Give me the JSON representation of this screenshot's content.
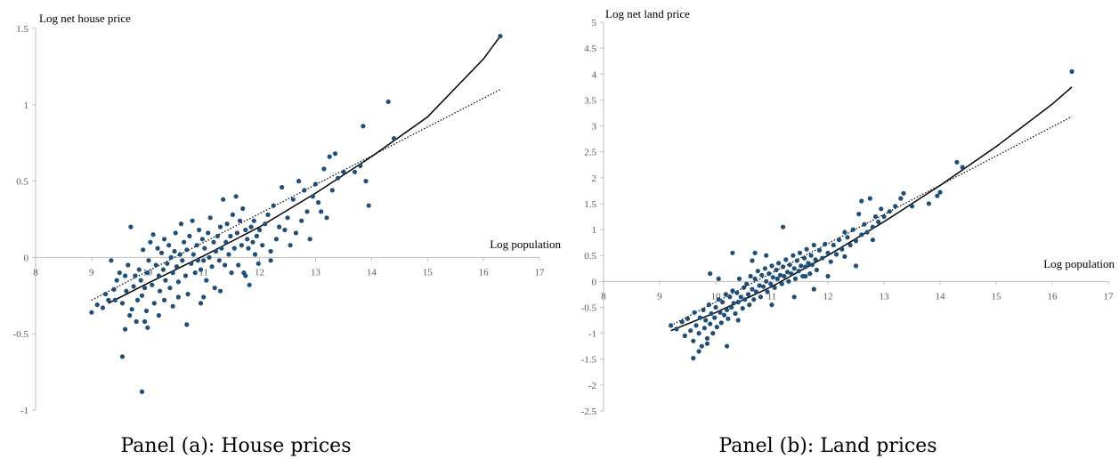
{
  "colors": {
    "point": "#1f4e79",
    "axis": "#bfbfbf",
    "fit_solid": "#000000",
    "fit_dotted": "#000000"
  },
  "chart_data": [
    {
      "type": "scatter",
      "panel": "a",
      "caption": "Panel (a): House prices",
      "ylabel": "Log net house price",
      "xlabel": "Log population",
      "xlim": [
        8,
        17
      ],
      "ylim": [
        -1,
        1.5
      ],
      "x_ticks": [
        "8",
        "9",
        "10",
        "11",
        "12",
        "13",
        "14",
        "15",
        "16",
        "17"
      ],
      "y_ticks": [
        "-1",
        "-0.5",
        "0",
        "0.5",
        "1",
        "1.5"
      ],
      "points": [
        [
          9.0,
          -0.36
        ],
        [
          9.1,
          -0.31
        ],
        [
          9.2,
          -0.33
        ],
        [
          9.25,
          -0.24
        ],
        [
          9.3,
          -0.28
        ],
        [
          9.35,
          -0.02
        ],
        [
          9.4,
          -0.21
        ],
        [
          9.45,
          -0.15
        ],
        [
          9.5,
          -0.1
        ],
        [
          9.55,
          -0.3
        ],
        [
          9.6,
          -0.12
        ],
        [
          9.62,
          -0.22
        ],
        [
          9.65,
          -0.05
        ],
        [
          9.7,
          0.2
        ],
        [
          9.72,
          -0.34
        ],
        [
          9.75,
          -0.19
        ],
        [
          9.78,
          -0.12
        ],
        [
          9.8,
          -0.42
        ],
        [
          9.82,
          -0.28
        ],
        [
          9.85,
          -0.08
        ],
        [
          9.88,
          -0.15
        ],
        [
          9.9,
          -0.25
        ],
        [
          9.92,
          0.05
        ],
        [
          9.95,
          -0.2
        ],
        [
          9.98,
          -0.35
        ],
        [
          10.0,
          -0.1
        ],
        [
          10.02,
          -0.02
        ],
        [
          10.05,
          0.1
        ],
        [
          10.08,
          -0.18
        ],
        [
          10.1,
          0.15
        ],
        [
          10.12,
          -0.3
        ],
        [
          10.15,
          -0.05
        ],
        [
          10.18,
          0.06
        ],
        [
          10.2,
          -0.12
        ],
        [
          10.22,
          -0.22
        ],
        [
          10.25,
          0.03
        ],
        [
          10.28,
          -0.08
        ],
        [
          10.3,
          0.12
        ],
        [
          10.32,
          -0.15
        ],
        [
          10.35,
          -0.04
        ],
        [
          10.38,
          0.08
        ],
        [
          10.4,
          -0.2
        ],
        [
          10.42,
          0.0
        ],
        [
          10.45,
          -0.1
        ],
        [
          10.48,
          0.04
        ],
        [
          10.5,
          0.16
        ],
        [
          10.52,
          -0.06
        ],
        [
          10.55,
          -0.16
        ],
        [
          10.58,
          0.02
        ],
        [
          10.6,
          0.22
        ],
        [
          10.62,
          -0.02
        ],
        [
          10.65,
          0.1
        ],
        [
          10.68,
          -0.12
        ],
        [
          10.7,
          0.05
        ],
        [
          10.72,
          -0.24
        ],
        [
          10.75,
          0.14
        ],
        [
          10.78,
          -0.04
        ],
        [
          10.8,
          0.24
        ],
        [
          10.82,
          0.02
        ],
        [
          10.85,
          -0.1
        ],
        [
          10.88,
          0.08
        ],
        [
          10.9,
          -0.02
        ],
        [
          10.92,
          0.18
        ],
        [
          10.95,
          -0.08
        ],
        [
          10.98,
          0.12
        ],
        [
          11.0,
          -0.02
        ],
        [
          11.02,
          0.06
        ],
        [
          11.05,
          -0.15
        ],
        [
          11.08,
          0.16
        ],
        [
          11.1,
          0.0
        ],
        [
          11.12,
          0.26
        ],
        [
          11.15,
          -0.06
        ],
        [
          11.18,
          0.1
        ],
        [
          11.2,
          -0.2
        ],
        [
          11.22,
          0.04
        ],
        [
          11.25,
          0.14
        ],
        [
          11.28,
          -0.02
        ],
        [
          11.3,
          0.2
        ],
        [
          11.32,
          0.06
        ],
        [
          11.35,
          0.38
        ],
        [
          11.38,
          -0.05
        ],
        [
          11.4,
          0.1
        ],
        [
          11.42,
          0.22
        ],
        [
          11.45,
          0.02
        ],
        [
          11.48,
          0.14
        ],
        [
          11.5,
          -0.1
        ],
        [
          11.52,
          0.28
        ],
        [
          11.55,
          0.06
        ],
        [
          11.58,
          0.4
        ],
        [
          11.6,
          0.16
        ],
        [
          11.62,
          -0.05
        ],
        [
          11.65,
          0.24
        ],
        [
          11.68,
          0.08
        ],
        [
          11.7,
          0.32
        ],
        [
          11.72,
          -0.1
        ],
        [
          11.75,
          0.18
        ],
        [
          11.78,
          0.12
        ],
        [
          11.8,
          0.06
        ],
        [
          11.82,
          -0.18
        ],
        [
          11.85,
          0.2
        ],
        [
          11.88,
          0.1
        ],
        [
          11.9,
          0.24
        ],
        [
          11.92,
          0.02
        ],
        [
          11.95,
          0.14
        ],
        [
          11.98,
          -0.04
        ],
        [
          12.0,
          0.18
        ],
        [
          12.05,
          0.08
        ],
        [
          12.1,
          0.22
        ],
        [
          12.15,
          0.28
        ],
        [
          12.2,
          0.04
        ],
        [
          12.25,
          0.34
        ],
        [
          12.3,
          0.12
        ],
        [
          12.35,
          0.2
        ],
        [
          12.4,
          0.46
        ],
        [
          12.45,
          0.18
        ],
        [
          12.5,
          0.26
        ],
        [
          12.55,
          0.08
        ],
        [
          12.6,
          0.38
        ],
        [
          12.65,
          0.16
        ],
        [
          12.7,
          0.5
        ],
        [
          12.75,
          0.24
        ],
        [
          12.8,
          0.44
        ],
        [
          12.85,
          0.3
        ],
        [
          12.9,
          0.12
        ],
        [
          12.95,
          0.4
        ],
        [
          13.0,
          0.48
        ],
        [
          13.05,
          0.36
        ],
        [
          13.1,
          0.3
        ],
        [
          13.15,
          0.58
        ],
        [
          13.2,
          0.26
        ],
        [
          13.25,
          0.66
        ],
        [
          13.3,
          0.44
        ],
        [
          13.35,
          0.68
        ],
        [
          13.4,
          0.52
        ],
        [
          13.5,
          0.56
        ],
        [
          13.7,
          0.56
        ],
        [
          13.8,
          0.6
        ],
        [
          13.85,
          0.86
        ],
        [
          13.9,
          0.5
        ],
        [
          13.95,
          0.34
        ],
        [
          14.3,
          1.02
        ],
        [
          14.4,
          0.78
        ],
        [
          16.3,
          1.45
        ],
        [
          9.55,
          -0.65
        ],
        [
          9.9,
          -0.88
        ],
        [
          9.6,
          -0.47
        ],
        [
          10.0,
          -0.46
        ],
        [
          10.7,
          -0.44
        ],
        [
          9.42,
          -0.28
        ],
        [
          9.68,
          -0.38
        ],
        [
          10.3,
          -0.28
        ],
        [
          10.55,
          -0.26
        ],
        [
          10.95,
          -0.3
        ],
        [
          11.3,
          -0.22
        ],
        [
          9.95,
          -0.42
        ],
        [
          10.45,
          -0.32
        ],
        [
          11.0,
          -0.26
        ],
        [
          11.75,
          -0.12
        ],
        [
          12.2,
          -0.02
        ],
        [
          10.2,
          -0.38
        ]
      ],
      "fit_quadratic": {
        "x": [
          9.3,
          10,
          11,
          12,
          13,
          14,
          15,
          16,
          16.3
        ],
        "y": [
          -0.3,
          -0.17,
          0.01,
          0.2,
          0.42,
          0.66,
          0.92,
          1.3,
          1.45
        ]
      },
      "fit_linear": {
        "x": [
          9.0,
          16.3
        ],
        "y": [
          -0.28,
          1.1
        ]
      }
    },
    {
      "type": "scatter",
      "panel": "b",
      "caption": "Panel (b): Land prices",
      "ylabel": "Log net land price",
      "xlabel": "Log population",
      "xlim": [
        8,
        17
      ],
      "ylim": [
        -2.5,
        5
      ],
      "x_ticks": [
        "8",
        "9",
        "10",
        "11",
        "12",
        "13",
        "14",
        "15",
        "16",
        "17"
      ],
      "y_ticks": [
        "-2.5",
        "-2",
        "-1.5",
        "-1",
        "-0.5",
        "0",
        "0.5",
        "1",
        "1.5",
        "2",
        "2.5",
        "3",
        "3.5",
        "4",
        "4.5",
        "5"
      ],
      "points": [
        [
          9.2,
          -0.85
        ],
        [
          9.3,
          -0.92
        ],
        [
          9.4,
          -0.78
        ],
        [
          9.45,
          -1.05
        ],
        [
          9.5,
          -0.72
        ],
        [
          9.55,
          -0.95
        ],
        [
          9.6,
          -1.15
        ],
        [
          9.62,
          -0.6
        ],
        [
          9.65,
          -0.85
        ],
        [
          9.7,
          -1.0
        ],
        [
          9.72,
          -0.7
        ],
        [
          9.75,
          -1.25
        ],
        [
          9.78,
          -0.55
        ],
        [
          9.8,
          -0.9
        ],
        [
          9.82,
          -0.75
        ],
        [
          9.85,
          -1.1
        ],
        [
          9.88,
          -0.45
        ],
        [
          9.9,
          -0.82
        ],
        [
          9.92,
          -0.62
        ],
        [
          9.95,
          -1.0
        ],
        [
          9.98,
          -0.7
        ],
        [
          10.0,
          -0.5
        ],
        [
          10.02,
          -0.88
        ],
        [
          10.05,
          -0.35
        ],
        [
          10.08,
          -0.6
        ],
        [
          10.1,
          -0.8
        ],
        [
          10.12,
          -0.4
        ],
        [
          10.15,
          -0.65
        ],
        [
          10.18,
          -0.25
        ],
        [
          10.2,
          -0.55
        ],
        [
          10.22,
          -0.72
        ],
        [
          10.25,
          -0.3
        ],
        [
          10.28,
          -0.5
        ],
        [
          10.3,
          -0.18
        ],
        [
          10.32,
          -0.42
        ],
        [
          10.35,
          -0.62
        ],
        [
          10.38,
          -0.22
        ],
        [
          10.4,
          -0.4
        ],
        [
          10.42,
          0.05
        ],
        [
          10.45,
          -0.3
        ],
        [
          10.48,
          -0.52
        ],
        [
          10.5,
          -0.12
        ],
        [
          10.52,
          -0.35
        ],
        [
          10.55,
          -0.05
        ],
        [
          10.58,
          -0.25
        ],
        [
          10.6,
          -0.45
        ],
        [
          10.62,
          0.1
        ],
        [
          10.65,
          -0.15
        ],
        [
          10.68,
          -0.35
        ],
        [
          10.7,
          0.05
        ],
        [
          10.72,
          -0.2
        ],
        [
          10.75,
          0.2
        ],
        [
          10.78,
          -0.08
        ],
        [
          10.8,
          -0.3
        ],
        [
          10.82,
          0.12
        ],
        [
          10.85,
          -0.1
        ],
        [
          10.88,
          0.25
        ],
        [
          10.9,
          0.0
        ],
        [
          10.92,
          -0.2
        ],
        [
          10.95,
          0.15
        ],
        [
          10.98,
          -0.05
        ],
        [
          11.0,
          0.3
        ],
        [
          11.02,
          0.08
        ],
        [
          11.05,
          -0.12
        ],
        [
          11.08,
          0.22
        ],
        [
          11.1,
          0.05
        ],
        [
          11.12,
          0.35
        ],
        [
          11.15,
          0.12
        ],
        [
          11.18,
          -0.05
        ],
        [
          11.2,
          0.28
        ],
        [
          11.22,
          0.1
        ],
        [
          11.25,
          0.42
        ],
        [
          11.28,
          0.18
        ],
        [
          11.3,
          0.0
        ],
        [
          11.32,
          0.32
        ],
        [
          11.35,
          0.15
        ],
        [
          11.38,
          0.5
        ],
        [
          11.4,
          0.25
        ],
        [
          11.42,
          0.05
        ],
        [
          11.45,
          0.4
        ],
        [
          11.48,
          0.2
        ],
        [
          11.5,
          0.55
        ],
        [
          11.52,
          0.3
        ],
        [
          11.55,
          0.1
        ],
        [
          11.58,
          0.45
        ],
        [
          11.6,
          0.28
        ],
        [
          11.62,
          0.62
        ],
        [
          11.65,
          0.35
        ],
        [
          11.68,
          0.15
        ],
        [
          11.7,
          0.5
        ],
        [
          11.72,
          0.32
        ],
        [
          11.75,
          0.7
        ],
        [
          11.78,
          0.42
        ],
        [
          11.8,
          0.22
        ],
        [
          11.85,
          0.6
        ],
        [
          11.9,
          0.45
        ],
        [
          11.95,
          0.72
        ],
        [
          12.0,
          0.55
        ],
        [
          12.05,
          0.38
        ],
        [
          12.1,
          0.7
        ],
        [
          12.15,
          0.52
        ],
        [
          12.2,
          0.8
        ],
        [
          12.25,
          0.62
        ],
        [
          12.3,
          0.48
        ],
        [
          12.35,
          0.85
        ],
        [
          12.4,
          0.7
        ],
        [
          12.45,
          1.0
        ],
        [
          12.5,
          0.78
        ],
        [
          12.55,
          1.3
        ],
        [
          12.6,
          0.9
        ],
        [
          12.65,
          1.1
        ],
        [
          12.7,
          0.95
        ],
        [
          12.75,
          1.6
        ],
        [
          12.8,
          1.05
        ],
        [
          12.85,
          1.25
        ],
        [
          12.9,
          1.15
        ],
        [
          12.95,
          1.4
        ],
        [
          13.0,
          1.25
        ],
        [
          13.1,
          1.35
        ],
        [
          13.2,
          1.45
        ],
        [
          13.3,
          1.6
        ],
        [
          13.35,
          1.7
        ],
        [
          13.5,
          1.45
        ],
        [
          13.8,
          1.5
        ],
        [
          13.95,
          1.65
        ],
        [
          14.0,
          1.72
        ],
        [
          14.3,
          2.3
        ],
        [
          14.4,
          2.2
        ],
        [
          16.35,
          4.05
        ],
        [
          9.6,
          -1.48
        ],
        [
          9.7,
          -1.35
        ],
        [
          9.85,
          -1.2
        ],
        [
          10.2,
          -1.25
        ],
        [
          10.4,
          -0.75
        ],
        [
          9.9,
          0.15
        ],
        [
          10.3,
          0.55
        ],
        [
          10.7,
          0.55
        ],
        [
          11.0,
          -0.45
        ],
        [
          11.4,
          -0.3
        ],
        [
          11.75,
          -0.15
        ],
        [
          12.5,
          0.3
        ],
        [
          12.6,
          1.55
        ],
        [
          12.0,
          0.1
        ],
        [
          11.2,
          1.05
        ],
        [
          10.65,
          0.4
        ],
        [
          10.05,
          0.05
        ],
        [
          11.6,
          0.1
        ],
        [
          12.3,
          0.95
        ],
        [
          12.8,
          0.8
        ],
        [
          10.9,
          0.5
        ]
      ],
      "fit_quadratic": {
        "x": [
          9.2,
          10,
          11,
          12,
          13,
          14,
          15,
          16,
          16.35
        ],
        "y": [
          -0.95,
          -0.6,
          -0.1,
          0.5,
          1.15,
          1.85,
          2.6,
          3.42,
          3.75
        ]
      },
      "fit_linear": {
        "x": [
          9.2,
          16.35
        ],
        "y": [
          -0.85,
          3.18
        ]
      }
    }
  ]
}
